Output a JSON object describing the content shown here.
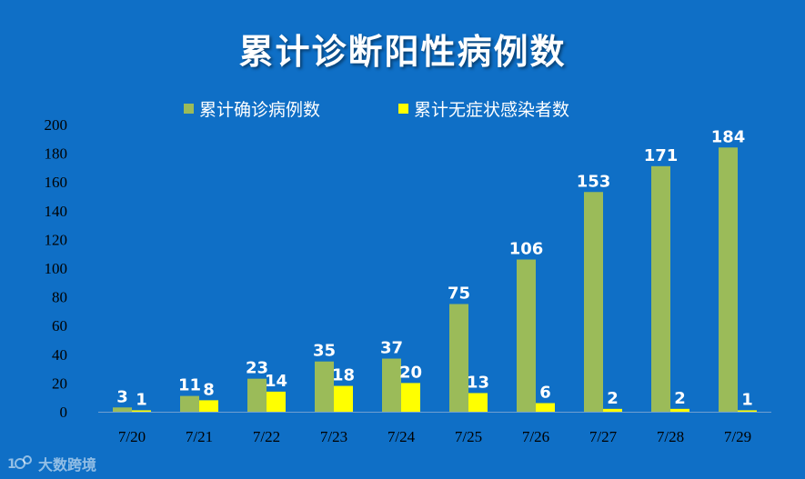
{
  "title": "累计诊断阳性病例数",
  "watermark": "大数跨境",
  "colors": {
    "background": "#0f6fc6",
    "confirmed": "#9bbb59",
    "asymptomatic": "#ffff00",
    "axis_text": "#000000",
    "label_text": "#ffffff"
  },
  "chart_data": {
    "type": "bar",
    "title": "累计诊断阳性病例数",
    "categories": [
      "7/20",
      "7/21",
      "7/22",
      "7/23",
      "7/24",
      "7/25",
      "7/26",
      "7/27",
      "7/28",
      "7/29"
    ],
    "series": [
      {
        "name": "累计确诊病例数",
        "color": "#9bbb59",
        "values": [
          3,
          11,
          23,
          35,
          37,
          75,
          106,
          153,
          171,
          184
        ]
      },
      {
        "name": "累计无症状感染者数",
        "color": "#ffff00",
        "values": [
          1,
          8,
          14,
          18,
          20,
          13,
          6,
          2,
          2,
          1
        ]
      }
    ],
    "yticks": [
      0,
      20,
      40,
      60,
      80,
      100,
      120,
      140,
      160,
      180,
      200
    ],
    "ylim": [
      0,
      200
    ],
    "grid": false,
    "legend_position": "top"
  }
}
